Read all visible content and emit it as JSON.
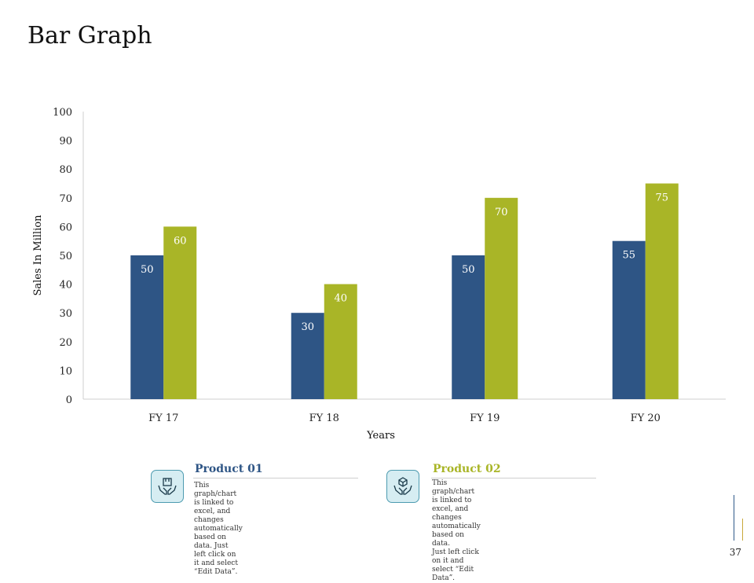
{
  "page": {
    "title": "Bar Graph",
    "page_number": "37"
  },
  "colors": {
    "series_1": "#2e5585",
    "series_2": "#a9b527",
    "product_1_title": "#2e5585",
    "product_2_title": "#a9b527",
    "axis": "#cfcfcf"
  },
  "legend": {
    "product_1": {
      "title": "Product 01",
      "text_lines": [
        "This graph/chart is linked to excel, and",
        "changes automatically based on data. Just",
        "left click on it and select “Edit Data”."
      ],
      "icon": "hands-holding-box-icon"
    },
    "product_2": {
      "title": "Product 02",
      "text_lines": [
        "This graph/chart is linked to excel, and",
        "changes automatically based on data.",
        "Just left click on it  and select “Edit Data”."
      ],
      "icon": "hands-holding-cube-icon"
    }
  },
  "chart_data": {
    "type": "bar",
    "categories": [
      "FY 17",
      "FY 18",
      "FY 19",
      "FY 20"
    ],
    "series": [
      {
        "values": [
          50,
          30,
          50,
          55
        ]
      },
      {
        "values": [
          60,
          40,
          70,
          75
        ]
      }
    ],
    "xlabel": "Years",
    "ylabel": "Sales In Million",
    "ylim": [
      0,
      100
    ],
    "yticks": [
      0,
      10,
      20,
      30,
      40,
      50,
      60,
      70,
      80,
      90,
      100
    ],
    "data_labels": true,
    "grid": false
  }
}
